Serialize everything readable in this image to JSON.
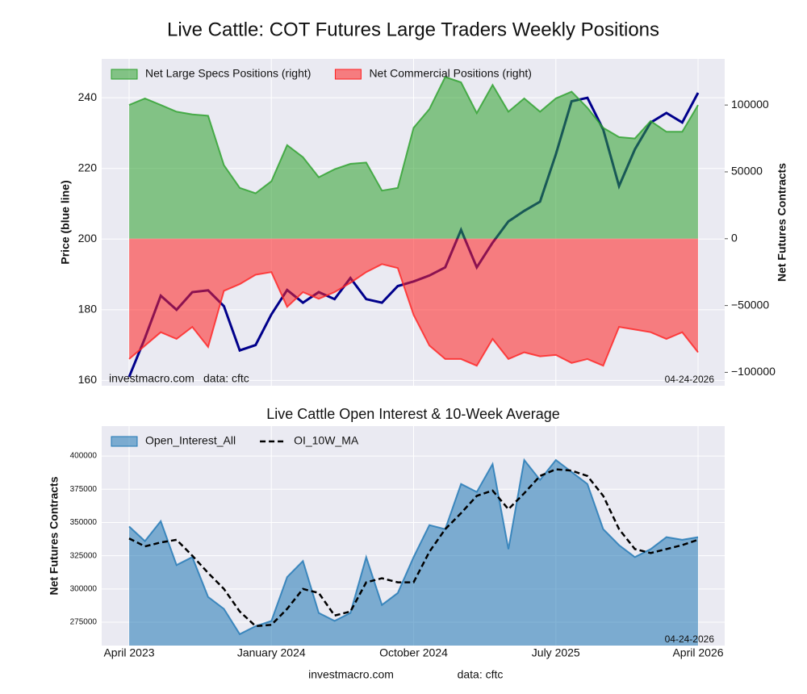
{
  "chart_data": [
    {
      "type": "combo",
      "title": "Live Cattle: COT Futures Large Traders Weekly Positions",
      "ylabel": "Price (blue line)",
      "y2label": "Net Futures Contracts",
      "source_note": "investmacro.com",
      "data_note": "data: cftc",
      "date_stamp": "04-24-2026",
      "legend": "upper left",
      "grid": true,
      "x": [
        "2023-04",
        "2023-05",
        "2023-06",
        "2023-07",
        "2023-08",
        "2023-09",
        "2023-10",
        "2023-11",
        "2023-12",
        "2024-01",
        "2024-02",
        "2024-03",
        "2024-04",
        "2024-05",
        "2024-06",
        "2024-07",
        "2024-08",
        "2024-09",
        "2024-10",
        "2024-11",
        "2024-12",
        "2025-01",
        "2025-02",
        "2025-03",
        "2025-04",
        "2025-05",
        "2025-06",
        "2025-07",
        "2025-08",
        "2025-09",
        "2025-10",
        "2025-11",
        "2025-12",
        "2026-01",
        "2026-02",
        "2026-03",
        "2026-04"
      ],
      "xticks": [
        "2023-04",
        "2024-01",
        "2024-10",
        "2025-07",
        "2026-04"
      ],
      "ylim": [
        158.5,
        251
      ],
      "yticks": [
        160,
        180,
        200,
        220,
        240
      ],
      "y2lim": [
        -110000,
        134500
      ],
      "y2ticks": [
        {
          "value": -100000,
          "label": "−100000"
        },
        {
          "value": -50000,
          "label": "−50000"
        },
        0,
        50000,
        100000
      ],
      "series": [
        {
          "kind": "line",
          "color": "#00008b",
          "values": [
            161,
            172,
            184,
            180,
            185,
            185.5,
            181,
            168.5,
            170,
            178.7,
            185.6,
            182,
            185,
            183,
            189,
            183,
            182,
            186.7,
            188,
            189.7,
            192,
            202.6,
            192,
            199,
            205,
            208,
            210.6,
            224,
            239,
            240,
            231,
            215,
            225.4,
            233,
            235.7,
            233,
            241.4
          ]
        },
        {
          "name": "Net Large Specs Positions (right)",
          "kind": "area",
          "axis": "y2",
          "color": "#2ca02c",
          "values": [
            100000,
            105000,
            100000,
            95000,
            93000,
            92000,
            55000,
            38000,
            34000,
            43000,
            70000,
            61000,
            46000,
            52000,
            56000,
            57000,
            36000,
            38000,
            83000,
            97000,
            121000,
            117000,
            94000,
            115000,
            95000,
            105000,
            95000,
            105000,
            110000,
            98000,
            83000,
            76000,
            75000,
            88000,
            80000,
            80000,
            100000
          ]
        },
        {
          "name": "Net Commercial Positions (right)",
          "kind": "area",
          "axis": "y2",
          "color": "#ff2020",
          "values": [
            -90000,
            -80000,
            -70000,
            -75000,
            -66000,
            -81000,
            -39000,
            -34000,
            -27000,
            -25000,
            -51000,
            -40000,
            -45000,
            -40000,
            -33000,
            -25000,
            -19000,
            -22000,
            -57000,
            -80000,
            -90000,
            -90000,
            -95000,
            -75000,
            -90000,
            -85000,
            -88000,
            -87000,
            -93000,
            -90000,
            -95000,
            -66000,
            -68000,
            -70000,
            -75000,
            -70000,
            -85000
          ]
        }
      ]
    },
    {
      "type": "area",
      "title": "Live Cattle Open Interest & 10-Week Average",
      "ylabel": "Net Futures Contracts",
      "date_stamp": "04-24-2026",
      "legend": "upper left",
      "grid": true,
      "x": [
        "2023-04",
        "2023-05",
        "2023-06",
        "2023-07",
        "2023-08",
        "2023-09",
        "2023-10",
        "2023-11",
        "2023-12",
        "2024-01",
        "2024-02",
        "2024-03",
        "2024-04",
        "2024-05",
        "2024-06",
        "2024-07",
        "2024-08",
        "2024-09",
        "2024-10",
        "2024-11",
        "2024-12",
        "2025-01",
        "2025-02",
        "2025-03",
        "2025-04",
        "2025-05",
        "2025-06",
        "2025-07",
        "2025-08",
        "2025-09",
        "2025-10",
        "2025-11",
        "2025-12",
        "2026-01",
        "2026-02",
        "2026-03",
        "2026-04"
      ],
      "xticks": [
        {
          "value": "2023-04",
          "label": "April 2023"
        },
        {
          "value": "2024-01",
          "label": "January 2024"
        },
        {
          "value": "2024-10",
          "label": "October 2024"
        },
        {
          "value": "2025-07",
          "label": "July 2025"
        },
        {
          "value": "2026-04",
          "label": "April 2026"
        }
      ],
      "ylim": [
        257400,
        422500
      ],
      "yticks": [
        275000,
        300000,
        325000,
        350000,
        375000,
        400000
      ],
      "series": [
        {
          "name": "Open_Interest_All",
          "kind": "area",
          "color": "#1f77b4",
          "values": [
            347000,
            336000,
            351000,
            318000,
            324000,
            294000,
            285000,
            266000,
            272000,
            276000,
            309000,
            321000,
            282000,
            276000,
            282000,
            324000,
            288000,
            297000,
            324000,
            348000,
            345000,
            379000,
            373000,
            394000,
            330000,
            397000,
            382000,
            397000,
            388000,
            379000,
            345000,
            333000,
            324000,
            330000,
            339000,
            337000,
            339000
          ]
        },
        {
          "name": "OI_10W_MA",
          "kind": "dashed",
          "color": "#000000",
          "values": [
            338000,
            332000,
            335000,
            337000,
            325000,
            312000,
            300000,
            283000,
            272000,
            273000,
            285000,
            300000,
            297000,
            280000,
            283000,
            305000,
            308000,
            305000,
            305000,
            328000,
            345000,
            357000,
            370000,
            374000,
            360000,
            372000,
            385000,
            390000,
            389000,
            385000,
            370000,
            345000,
            330000,
            327000,
            330000,
            333000,
            337000
          ]
        }
      ]
    }
  ],
  "footer": {
    "site": "investmacro.com",
    "source": "data: cftc"
  }
}
